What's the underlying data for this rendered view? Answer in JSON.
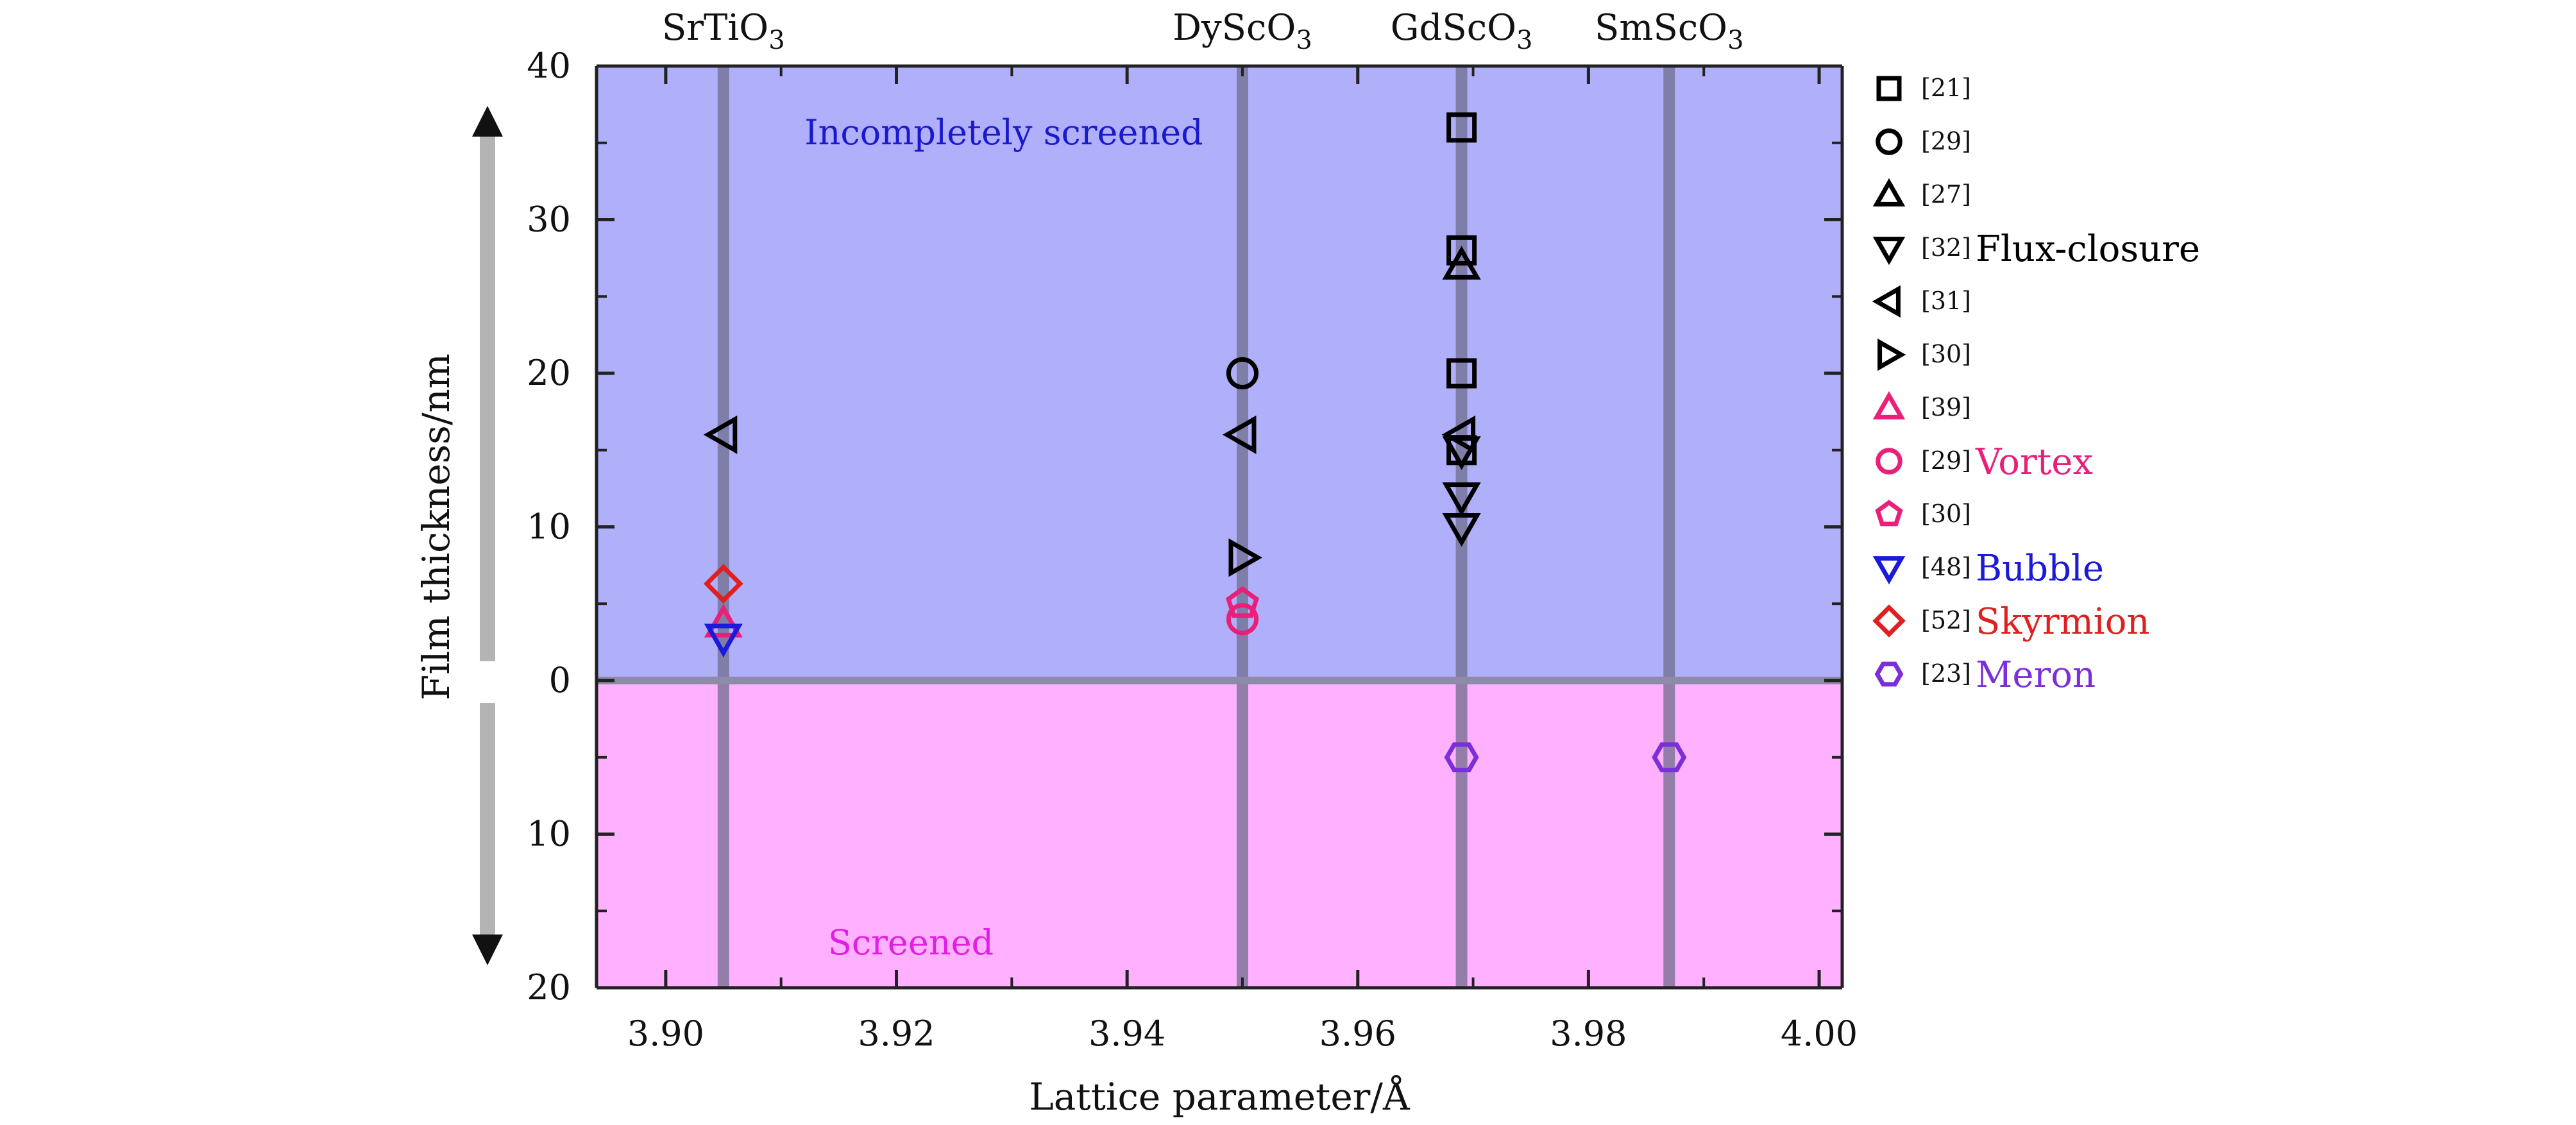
{
  "chart_data": {
    "type": "scatter",
    "xlabel": "Lattice parameter/Å",
    "ylabel": "Film thickness/nm",
    "xlim": [
      3.894,
      4.002
    ],
    "x_ticks": [
      3.9,
      3.92,
      3.94,
      3.96,
      3.98,
      4.0
    ],
    "x_tick_labels": [
      "3.90",
      "3.92",
      "3.94",
      "3.96",
      "3.98",
      "4.00"
    ],
    "ylim": [
      -20,
      40
    ],
    "y_ticks": [
      -20,
      -10,
      0,
      10,
      20,
      30,
      40
    ],
    "y_tick_labels": [
      "20",
      "10",
      "0",
      "10",
      "20",
      "30",
      "40"
    ],
    "regions": [
      {
        "label": "Incompletely screened",
        "from": 0,
        "to": 40,
        "color": "#b0b0fa",
        "text_color": "#1a1acc"
      },
      {
        "label": "Screened",
        "from": -20,
        "to": 0,
        "color": "#ffb0ff",
        "text_color": "#e020e0"
      }
    ],
    "substrates": [
      {
        "name": "SrTiO",
        "sub": "3",
        "x": 3.905
      },
      {
        "name": "DyScO",
        "sub": "3",
        "x": 3.95
      },
      {
        "name": "GdScO",
        "sub": "3",
        "x": 3.969
      },
      {
        "name": "SmScO",
        "sub": "3",
        "x": 3.987
      }
    ],
    "series": [
      {
        "ref": "[21]",
        "marker": "square",
        "color": "#000000",
        "points": [
          [
            3.969,
            36
          ],
          [
            3.969,
            28
          ],
          [
            3.969,
            20
          ],
          [
            3.969,
            15
          ]
        ]
      },
      {
        "ref": "[29]",
        "marker": "circle",
        "color": "#000000",
        "points": [
          [
            3.95,
            20
          ]
        ]
      },
      {
        "ref": "[27]",
        "marker": "triangle-up",
        "color": "#000000",
        "points": [
          [
            3.969,
            27
          ]
        ]
      },
      {
        "ref": "[32]",
        "marker": "triangle-down",
        "color": "#000000",
        "points": [
          [
            3.969,
            15
          ],
          [
            3.969,
            12
          ],
          [
            3.969,
            10
          ]
        ]
      },
      {
        "ref": "[31]",
        "marker": "triangle-left",
        "color": "#000000",
        "points": [
          [
            3.905,
            16
          ],
          [
            3.95,
            16
          ],
          [
            3.969,
            16
          ]
        ]
      },
      {
        "ref": "[30]",
        "marker": "triangle-right",
        "color": "#000000",
        "points": [
          [
            3.95,
            8
          ]
        ]
      },
      {
        "ref": "[39]",
        "marker": "triangle-up",
        "color": "#e8207a",
        "points": [
          [
            3.905,
            3.7
          ]
        ]
      },
      {
        "ref": "[29]",
        "marker": "circle",
        "color": "#e8207a",
        "points": [
          [
            3.95,
            4
          ]
        ]
      },
      {
        "ref": "[30]",
        "marker": "pentagon",
        "color": "#e8207a",
        "points": [
          [
            3.95,
            5
          ]
        ]
      },
      {
        "ref": "[48]",
        "marker": "triangle-down",
        "color": "#1a1ad8",
        "points": [
          [
            3.905,
            2.8
          ]
        ]
      },
      {
        "ref": "[52]",
        "marker": "diamond",
        "color": "#e02020",
        "points": [
          [
            3.905,
            6.3
          ]
        ]
      },
      {
        "ref": "[23]",
        "marker": "hexagon",
        "color": "#7b2fd8",
        "points": [
          [
            3.969,
            -5
          ],
          [
            3.987,
            -5
          ]
        ]
      }
    ],
    "legend": {
      "placement": "right",
      "entries": [
        {
          "ref": "[21]",
          "marker": "square",
          "color": "#000000",
          "group_label": ""
        },
        {
          "ref": "[29]",
          "marker": "circle",
          "color": "#000000",
          "group_label": ""
        },
        {
          "ref": "[27]",
          "marker": "triangle-up",
          "color": "#000000",
          "group_label": ""
        },
        {
          "ref": "[32]",
          "marker": "triangle-down",
          "color": "#000000",
          "group_label": "Flux-closure"
        },
        {
          "ref": "[31]",
          "marker": "triangle-left",
          "color": "#000000",
          "group_label": ""
        },
        {
          "ref": "[30]",
          "marker": "triangle-right",
          "color": "#000000",
          "group_label": ""
        },
        {
          "ref": "[39]",
          "marker": "triangle-up",
          "color": "#e8207a",
          "group_label": ""
        },
        {
          "ref": "[29]",
          "marker": "circle",
          "color": "#e8207a",
          "group_label": "Vortex"
        },
        {
          "ref": "[30]",
          "marker": "pentagon",
          "color": "#e8207a",
          "group_label": ""
        },
        {
          "ref": "[48]",
          "marker": "triangle-down",
          "color": "#1a1ad8",
          "group_label": "Bubble"
        },
        {
          "ref": "[52]",
          "marker": "diamond",
          "color": "#e02020",
          "group_label": "Skyrmion"
        },
        {
          "ref": "[23]",
          "marker": "hexagon",
          "color": "#7b2fd8",
          "group_label": "Meron"
        }
      ]
    },
    "colors": {
      "substrate_line": "#6e6e8c",
      "zero_line": "#8c8ca8",
      "arrow": "#b4b4b4",
      "vortex_label": "#e8207a",
      "bubble_label": "#1a1ad8",
      "skyrmion_label": "#e02020",
      "meron_label": "#7b2fd8",
      "flux_label": "#000000"
    }
  }
}
